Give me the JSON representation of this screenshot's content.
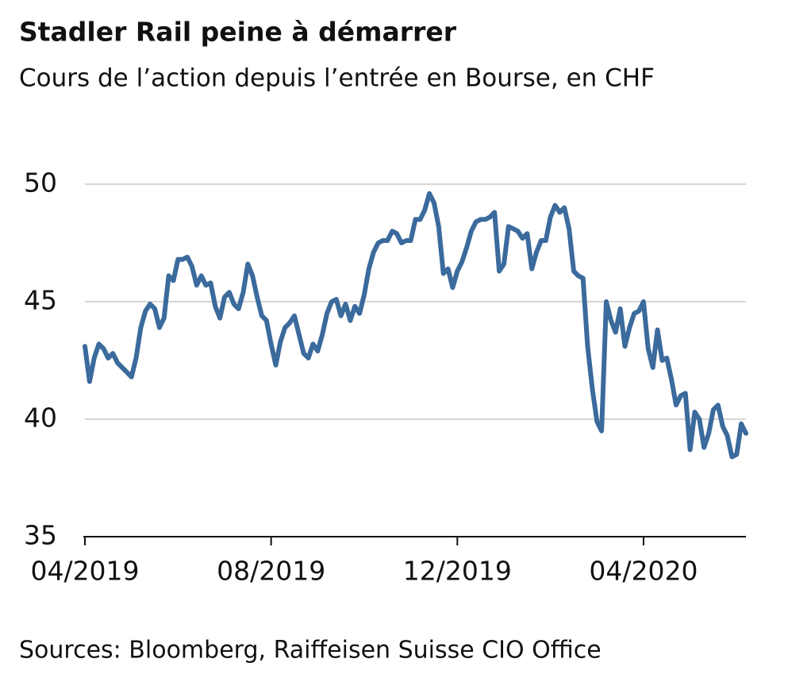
{
  "chart_data": {
    "type": "line",
    "title": "Stadler Rail peine à démarrer",
    "subtitle": "Cours de l’action depuis l’entrée en Bourse, en CHF",
    "source": "Sources: Bloomberg, Raiffeisen Suisse CIO Office",
    "color": "#3b6a9c",
    "grid": true,
    "ylim": [
      35,
      50
    ],
    "yticks": [
      35,
      40,
      45,
      50
    ],
    "categories": [
      "04/2019",
      null,
      null,
      null,
      null,
      null,
      null,
      null,
      null,
      null,
      null,
      null,
      null,
      null,
      null,
      null,
      null,
      null,
      null,
      null,
      null,
      null,
      null,
      null,
      null,
      null,
      null,
      null,
      null,
      null,
      null,
      null,
      null,
      null,
      null,
      null,
      null,
      null,
      null,
      null,
      "08/2019",
      null,
      null,
      null,
      null,
      null,
      null,
      null,
      null,
      null,
      null,
      null,
      null,
      null,
      null,
      null,
      null,
      null,
      null,
      null,
      null,
      null,
      null,
      null,
      null,
      null,
      null,
      null,
      null,
      null,
      null,
      null,
      null,
      null,
      null,
      null,
      null,
      null,
      null,
      null,
      "12/2019",
      null,
      null,
      null,
      null,
      null,
      null,
      null,
      null,
      null,
      null,
      null,
      null,
      null,
      null,
      null,
      null,
      null,
      null,
      null,
      null,
      null,
      null,
      null,
      null,
      null,
      null,
      null,
      null,
      null,
      null,
      null,
      null,
      null,
      null,
      null,
      null,
      null,
      null,
      null,
      "04/2020",
      null,
      null,
      null,
      null,
      null,
      null,
      null,
      null,
      null,
      null,
      null,
      null,
      null,
      null,
      null,
      null,
      null,
      null,
      null,
      null,
      null,
      null
    ],
    "values": [
      43.1,
      41.6,
      42.6,
      43.2,
      43.0,
      42.6,
      42.8,
      42.4,
      42.2,
      42.0,
      41.8,
      42.6,
      43.9,
      44.6,
      44.9,
      44.7,
      43.9,
      44.3,
      46.1,
      45.9,
      46.8,
      46.8,
      46.9,
      46.5,
      45.7,
      46.1,
      45.7,
      45.8,
      44.8,
      44.3,
      45.2,
      45.4,
      44.9,
      44.7,
      45.4,
      46.6,
      46.1,
      45.2,
      44.4,
      44.2,
      43.2,
      42.3,
      43.3,
      43.9,
      44.1,
      44.4,
      43.6,
      42.8,
      42.6,
      43.2,
      42.9,
      43.6,
      44.5,
      45.0,
      45.1,
      44.4,
      44.9,
      44.2,
      44.8,
      44.5,
      45.3,
      46.4,
      47.1,
      47.5,
      47.6,
      47.6,
      48.0,
      47.9,
      47.5,
      47.6,
      47.6,
      48.5,
      48.5,
      48.9,
      49.6,
      49.2,
      48.2,
      46.2,
      46.4,
      45.6,
      46.3,
      46.7,
      47.3,
      48.0,
      48.4,
      48.5,
      48.5,
      48.6,
      48.8,
      46.3,
      46.6,
      48.2,
      48.1,
      48.0,
      47.7,
      47.9,
      46.4,
      47.1,
      47.6,
      47.6,
      48.6,
      49.1,
      48.8,
      49.0,
      48.1,
      46.3,
      46.1,
      46.0,
      43.1,
      41.3,
      39.9,
      39.5,
      45.0,
      44.2,
      43.7,
      44.7,
      43.1,
      43.9,
      44.5,
      44.6,
      45.0,
      43.0,
      42.2,
      43.8,
      42.5,
      42.6,
      41.7,
      40.6,
      41.0,
      41.1,
      38.7,
      40.3,
      40.0,
      38.8,
      39.4,
      40.4,
      40.6,
      39.7,
      39.3,
      38.4,
      38.5,
      39.8,
      39.4
    ]
  }
}
